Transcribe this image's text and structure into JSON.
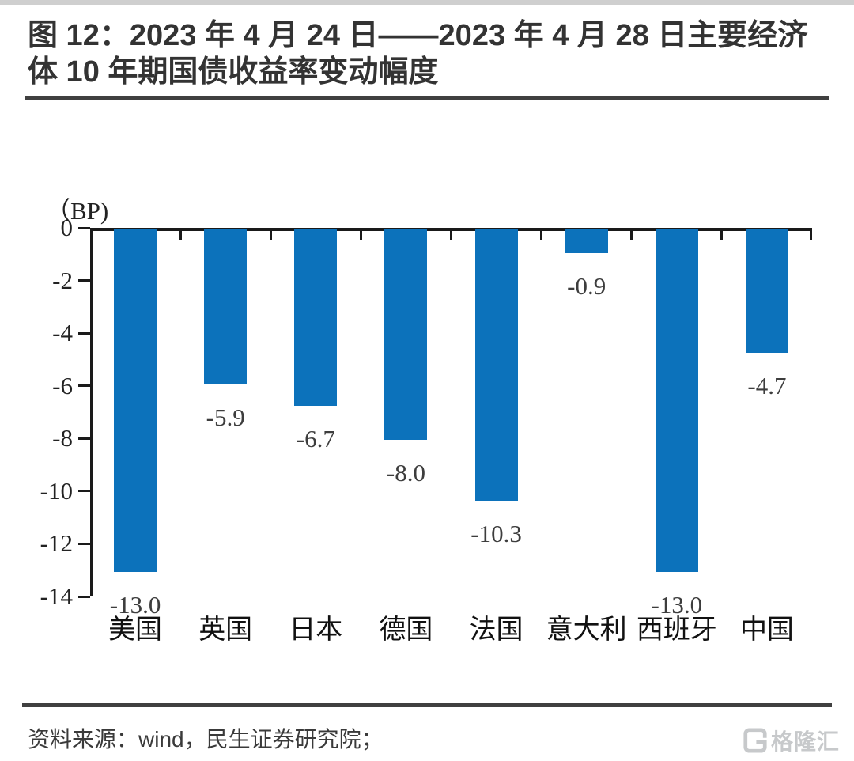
{
  "header": {
    "title": "图 12：2023 年 4 月 24 日——2023 年 4 月 28 日主要经济体 10 年期国债收益率变动幅度"
  },
  "chart_data": {
    "type": "bar",
    "title": "2023 年 4 月 24 日——2023 年 4 月 28 日主要经济体 10 年期国债收益率变动幅度",
    "ylabel": "（BP)",
    "categories": [
      "美国",
      "英国",
      "日本",
      "德国",
      "法国",
      "意大利",
      "西班牙",
      "中国"
    ],
    "values": [
      -13.0,
      -5.9,
      -6.7,
      -8.0,
      -10.3,
      -0.9,
      -13.0,
      -4.7
    ],
    "value_labels": [
      "-13.0",
      "-5.9",
      "-6.7",
      "-8.0",
      "-10.3",
      "-0.9",
      "-13.0",
      "-4.7"
    ],
    "yticks": [
      0,
      -2,
      -4,
      -6,
      -8,
      -10,
      -12,
      -14
    ],
    "ytick_labels": [
      "0",
      "-2",
      "-4",
      "-6",
      "-8",
      "-10",
      "-12",
      "-14"
    ],
    "ylim": [
      -14,
      0
    ],
    "grid": false,
    "legend": "none",
    "bar_color": "#0c72bb"
  },
  "colors": {
    "bar_blue": "#0c72bb",
    "rule_dark": "#404040",
    "logo_gray": "#c7c9cb"
  },
  "footer": {
    "source": "资料来源：wind，民生证券研究院；",
    "logo_text": "格隆汇"
  }
}
